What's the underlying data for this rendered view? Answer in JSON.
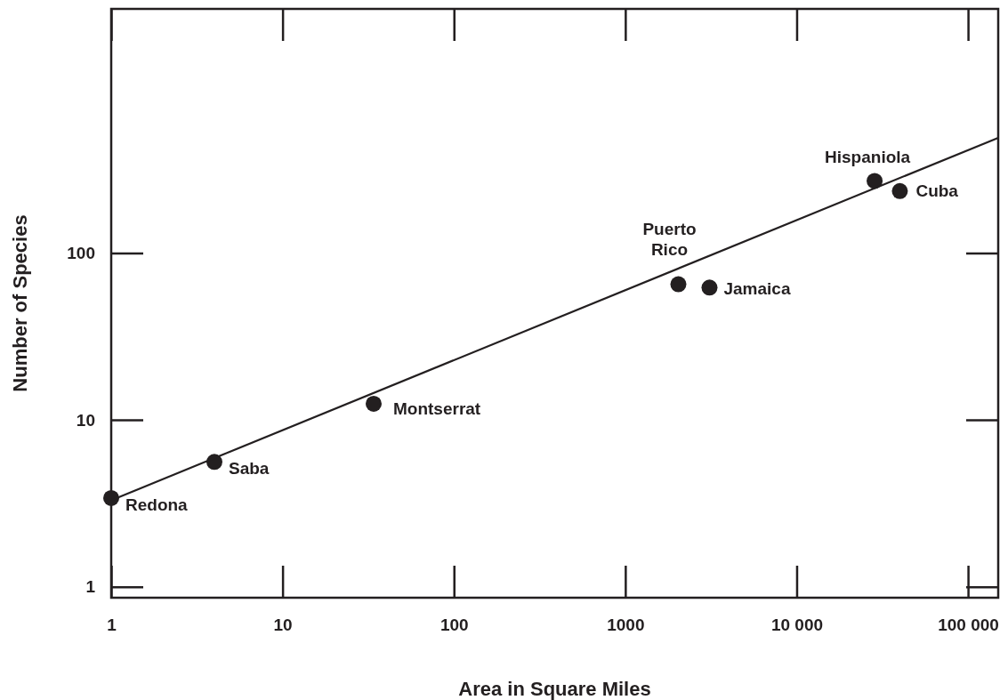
{
  "chart_data": {
    "type": "scatter",
    "xlabel": "Area in Square Miles",
    "ylabel": "Number of Species",
    "log": "xy",
    "grid": false,
    "xlim": [
      1,
      150000
    ],
    "ylim": [
      0.86,
      2900
    ],
    "xticks": [
      1,
      10,
      100,
      1000,
      {
        "value": 10000,
        "label": "10 000"
      },
      {
        "value": 100000,
        "label": "100 000"
      }
    ],
    "yticks": [
      1,
      10,
      100
    ],
    "series": [
      {
        "type": "scatter",
        "marker": "circle",
        "color": "#231f20",
        "x": [
          1,
          4,
          34,
          2040,
          3100,
          28500,
          40000
        ],
        "values": [
          3.4,
          5.6,
          12.5,
          65,
          62,
          270,
          235
        ]
      },
      {
        "type": "line",
        "color": "#231f20",
        "x": [
          1,
          150000
        ],
        "values": [
          3.3,
          490
        ]
      }
    ],
    "annotations": [
      {
        "text": "Redona",
        "x": 1,
        "y": 3.4
      },
      {
        "text": "Saba",
        "x": 4,
        "y": 5.6
      },
      {
        "text": "Montserrat",
        "x": 34,
        "y": 12.5
      },
      {
        "text": "Puerto\nRico",
        "x": 2040,
        "y": 65
      },
      {
        "text": "Jamaica",
        "x": 3100,
        "y": 62
      },
      {
        "text": "Hispaniola",
        "x": 28500,
        "y": 270
      },
      {
        "text": "Cuba",
        "x": 40000,
        "y": 235
      }
    ]
  }
}
